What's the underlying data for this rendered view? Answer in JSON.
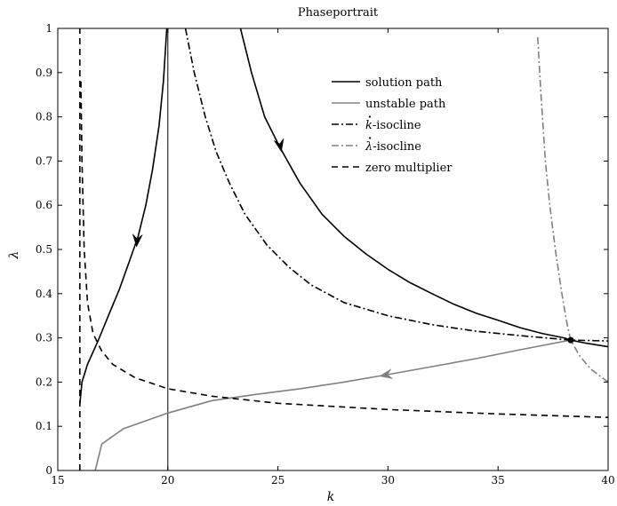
{
  "chart_data": {
    "type": "line",
    "title": "Phaseportrait",
    "xlabel": "k",
    "ylabel": "λ",
    "xlim": [
      15,
      40
    ],
    "ylim": [
      0,
      1
    ],
    "xticks": [
      15,
      20,
      25,
      30,
      35,
      40
    ],
    "yticks": [
      0,
      0.1,
      0.2,
      0.3,
      0.4,
      0.5,
      0.6,
      0.7,
      0.8,
      0.9,
      1
    ],
    "ytick_labels": [
      "0",
      "0.1",
      "0.2",
      "0.3",
      "0.4",
      "0.5",
      "0.6",
      "0.7",
      "0.8",
      "0.9",
      "1"
    ],
    "grid": false,
    "legend_position": "top-right",
    "series": [
      {
        "name": "solution path",
        "color": "#000000",
        "dash": "solid",
        "segments": [
          [
            [
              16.0,
              0.15
            ],
            [
              16.1,
              0.2
            ],
            [
              16.35,
              0.24
            ],
            [
              16.8,
              0.29
            ],
            [
              17.3,
              0.35
            ],
            [
              17.8,
              0.41
            ],
            [
              18.3,
              0.48
            ],
            [
              18.65,
              0.53
            ],
            [
              19.0,
              0.6
            ],
            [
              19.3,
              0.68
            ],
            [
              19.6,
              0.78
            ],
            [
              19.8,
              0.88
            ],
            [
              19.95,
              1.0
            ]
          ],
          [
            [
              23.3,
              1.0
            ],
            [
              23.8,
              0.9
            ],
            [
              24.4,
              0.8
            ],
            [
              25.1,
              0.73
            ],
            [
              26.0,
              0.65
            ],
            [
              27.0,
              0.58
            ],
            [
              28.0,
              0.53
            ],
            [
              29.0,
              0.49
            ],
            [
              30.0,
              0.455
            ],
            [
              31.0,
              0.425
            ],
            [
              32.0,
              0.4
            ],
            [
              33.0,
              0.376
            ],
            [
              34.0,
              0.356
            ],
            [
              35.0,
              0.34
            ],
            [
              36.0,
              0.323
            ],
            [
              37.0,
              0.31
            ],
            [
              38.0,
              0.3
            ],
            [
              38.3,
              0.295
            ],
            [
              39.0,
              0.288
            ],
            [
              40.0,
              0.28
            ]
          ]
        ]
      },
      {
        "name": "unstable path",
        "color": "#808080",
        "dash": "solid",
        "segments": [
          [
            [
              38.3,
              0.295
            ],
            [
              36.0,
              0.273
            ],
            [
              34.0,
              0.253
            ],
            [
              32.0,
              0.235
            ],
            [
              30.0,
              0.217
            ],
            [
              28.0,
              0.2
            ],
            [
              26.0,
              0.185
            ],
            [
              24.0,
              0.172
            ],
            [
              22.0,
              0.158
            ],
            [
              20.0,
              0.13
            ],
            [
              18.0,
              0.095
            ],
            [
              17.0,
              0.06
            ],
            [
              16.7,
              0.0
            ]
          ]
        ]
      },
      {
        "name": "k̇-isocline",
        "color": "#000000",
        "dash": "dashdot",
        "segments": [
          [
            [
              20.8,
              1.0
            ],
            [
              21.2,
              0.9
            ],
            [
              21.7,
              0.8
            ],
            [
              22.2,
              0.72
            ],
            [
              22.8,
              0.65
            ],
            [
              23.5,
              0.58
            ],
            [
              24.5,
              0.51
            ],
            [
              25.5,
              0.46
            ],
            [
              26.5,
              0.42
            ],
            [
              28.0,
              0.38
            ],
            [
              30.0,
              0.35
            ],
            [
              32.0,
              0.33
            ],
            [
              34.0,
              0.315
            ],
            [
              36.0,
              0.305
            ],
            [
              38.3,
              0.295
            ],
            [
              40.0,
              0.293
            ]
          ]
        ]
      },
      {
        "name": "λ̇-isocline",
        "color": "#808080",
        "dash": "dashdot",
        "segments": [
          [
            [
              36.8,
              0.98
            ],
            [
              36.95,
              0.85
            ],
            [
              37.15,
              0.7
            ],
            [
              37.35,
              0.6
            ],
            [
              37.6,
              0.5
            ],
            [
              37.9,
              0.4
            ],
            [
              38.1,
              0.34
            ],
            [
              38.3,
              0.295
            ],
            [
              38.7,
              0.26
            ],
            [
              39.2,
              0.23
            ],
            [
              40.0,
              0.2
            ]
          ]
        ]
      },
      {
        "name": "zero multiplier",
        "color": "#000000",
        "dash": "dashed",
        "segments": [
          [
            [
              16.0,
              0.0
            ],
            [
              16.0,
              1.0
            ]
          ],
          [
            [
              16.05,
              0.88
            ],
            [
              16.1,
              0.7
            ],
            [
              16.2,
              0.5
            ],
            [
              16.35,
              0.38
            ],
            [
              16.6,
              0.31
            ],
            [
              17.0,
              0.27
            ],
            [
              17.5,
              0.24
            ],
            [
              18.5,
              0.21
            ],
            [
              20.0,
              0.185
            ],
            [
              22.0,
              0.168
            ],
            [
              25.0,
              0.152
            ],
            [
              30.0,
              0.138
            ],
            [
              35.0,
              0.128
            ],
            [
              40.0,
              0.12
            ]
          ]
        ]
      }
    ],
    "vertical_line": {
      "x": 20,
      "color": "#000000"
    },
    "equilibrium_point": {
      "x": 38.3,
      "y": 0.295
    },
    "arrows": [
      {
        "x": 18.6,
        "y": 0.52,
        "dx": -0.1,
        "dy": -0.06,
        "color": "#000000"
      },
      {
        "x": 25.1,
        "y": 0.735,
        "dx": 0.3,
        "dy": -0.07,
        "color": "#000000"
      },
      {
        "x": 29.9,
        "y": 0.216,
        "dx": -1.0,
        "dy": -0.009,
        "color": "#808080"
      }
    ],
    "legend": [
      {
        "label": "solution path",
        "color": "#000000",
        "dash": "solid"
      },
      {
        "label": "unstable path",
        "color": "#808080",
        "dash": "solid"
      },
      {
        "label": "-isocline",
        "dot_symbol": "k",
        "color": "#000000",
        "dash": "dashdot"
      },
      {
        "label": "-isocline",
        "dot_symbol": "λ",
        "color": "#808080",
        "dash": "dashdot"
      },
      {
        "label": "zero multiplier",
        "color": "#000000",
        "dash": "dashed"
      }
    ]
  }
}
